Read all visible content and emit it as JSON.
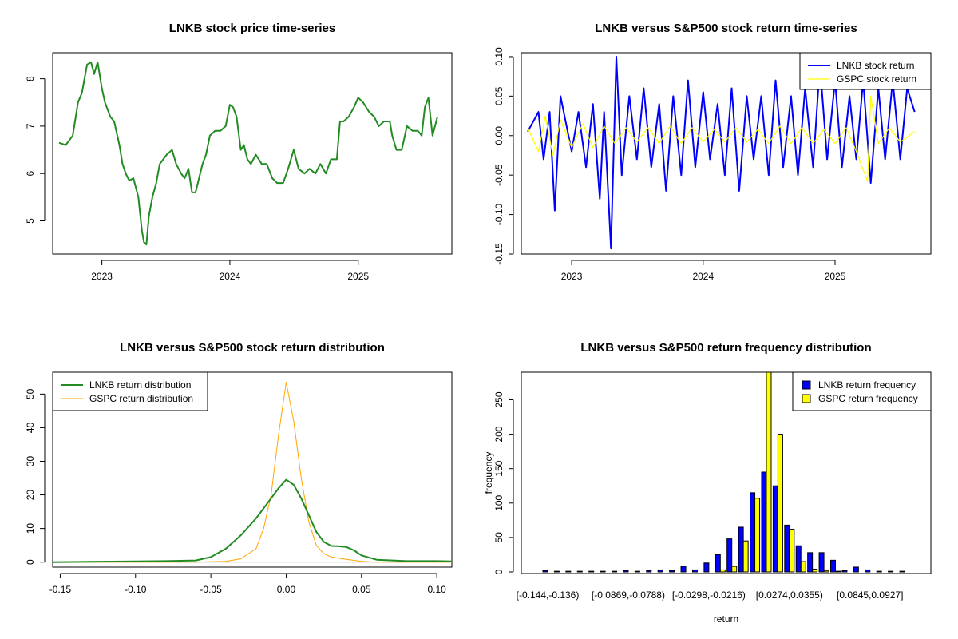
{
  "chart_data": [
    {
      "type": "line",
      "title": "LNKB stock price time-series",
      "xlabel": "",
      "ylabel": "",
      "x_ticks": [
        "2023",
        "2024",
        "2025"
      ],
      "y_ticks": [
        "5",
        "6",
        "7",
        "8"
      ],
      "x_range": [
        "2022-09-01",
        "2025-08-15"
      ],
      "ylim": [
        4.3,
        8.55
      ],
      "color": "#228B22",
      "series": [
        {
          "x": [
            "2022-09-01",
            "2022-09-20",
            "2022-10-10",
            "2022-10-25",
            "2022-11-05",
            "2022-11-20",
            "2022-12-01",
            "2022-12-10",
            "2022-12-20",
            "2023-01-01",
            "2023-01-10",
            "2023-01-25",
            "2023-02-05",
            "2023-02-20",
            "2023-03-01",
            "2023-03-10",
            "2023-03-20",
            "2023-04-01",
            "2023-04-15",
            "2023-04-25",
            "2023-05-01",
            "2023-05-08",
            "2023-05-15",
            "2023-05-25",
            "2023-06-05",
            "2023-06-15",
            "2023-06-25",
            "2023-07-05",
            "2023-07-20",
            "2023-08-01",
            "2023-08-15",
            "2023-08-25",
            "2023-09-05",
            "2023-09-15",
            "2023-09-25",
            "2023-10-05",
            "2023-10-15",
            "2023-10-25",
            "2023-11-05",
            "2023-11-20",
            "2023-12-05",
            "2023-12-20",
            "2024-01-01",
            "2024-01-10",
            "2024-01-20",
            "2024-02-01",
            "2024-02-10",
            "2024-02-20",
            "2024-03-01",
            "2024-03-15",
            "2024-04-01",
            "2024-04-15",
            "2024-05-01",
            "2024-05-15",
            "2024-06-01",
            "2024-06-15",
            "2024-07-01",
            "2024-07-15",
            "2024-08-01",
            "2024-08-15",
            "2024-09-01",
            "2024-09-15",
            "2024-10-01",
            "2024-10-15",
            "2024-11-01",
            "2024-11-10",
            "2024-11-20",
            "2024-12-05",
            "2024-12-20",
            "2025-01-01",
            "2025-01-15",
            "2025-02-01",
            "2025-02-15",
            "2025-03-01",
            "2025-03-15",
            "2025-04-01",
            "2025-04-08",
            "2025-04-20",
            "2025-05-05",
            "2025-05-20",
            "2025-06-05",
            "2025-06-20",
            "2025-07-01",
            "2025-07-10",
            "2025-07-20",
            "2025-08-01",
            "2025-08-15"
          ],
          "y": [
            6.65,
            6.6,
            6.8,
            7.5,
            7.7,
            8.3,
            8.35,
            8.1,
            8.35,
            7.8,
            7.5,
            7.2,
            7.1,
            6.6,
            6.2,
            6.0,
            5.85,
            5.9,
            5.5,
            4.8,
            4.55,
            4.5,
            5.1,
            5.5,
            5.8,
            6.2,
            6.3,
            6.4,
            6.5,
            6.2,
            6.0,
            5.9,
            6.1,
            5.6,
            5.6,
            5.9,
            6.2,
            6.4,
            6.8,
            6.9,
            6.9,
            7.0,
            7.45,
            7.4,
            7.2,
            6.5,
            6.6,
            6.3,
            6.2,
            6.4,
            6.2,
            6.2,
            5.9,
            5.8,
            5.8,
            6.1,
            6.5,
            6.1,
            6.0,
            6.1,
            6.0,
            6.2,
            6.0,
            6.3,
            6.3,
            7.1,
            7.1,
            7.2,
            7.4,
            7.6,
            7.5,
            7.3,
            7.2,
            7.0,
            7.1,
            7.1,
            6.8,
            6.5,
            6.5,
            7.0,
            6.9,
            6.9,
            6.8,
            7.4,
            7.6,
            6.8,
            7.2
          ]
        }
      ]
    },
    {
      "type": "line",
      "title": "LNKB versus S&P500 stock return time-series",
      "xlabel": "",
      "ylabel": "",
      "x_ticks": [
        "2023",
        "2024",
        "2025"
      ],
      "y_ticks": [
        "-0.15",
        "-0.10",
        "-0.05",
        "0.00",
        "0.05",
        "0.10"
      ],
      "x_range": [
        "2022-09-01",
        "2025-08-15"
      ],
      "ylim": [
        -0.15,
        0.105
      ],
      "legend": "top-right",
      "series": [
        {
          "name": "LNKB stock return",
          "color": "#0000FF",
          "x": [
            "2022-09-01",
            "2022-10-01",
            "2022-10-15",
            "2022-11-01",
            "2022-11-15",
            "2022-12-01",
            "2023-01-01",
            "2023-01-20",
            "2023-02-10",
            "2023-03-01",
            "2023-03-20",
            "2023-04-01",
            "2023-04-20",
            "2023-05-05",
            "2023-05-20",
            "2023-06-10",
            "2023-07-01",
            "2023-07-20",
            "2023-08-10",
            "2023-09-01",
            "2023-09-20",
            "2023-10-10",
            "2023-11-01",
            "2023-11-20",
            "2023-12-10",
            "2024-01-01",
            "2024-01-20",
            "2024-02-10",
            "2024-03-01",
            "2024-03-20",
            "2024-04-10",
            "2024-05-01",
            "2024-05-20",
            "2024-06-10",
            "2024-07-01",
            "2024-07-20",
            "2024-08-10",
            "2024-09-01",
            "2024-09-20",
            "2024-10-10",
            "2024-11-01",
            "2024-11-20",
            "2024-12-10",
            "2025-01-01",
            "2025-01-20",
            "2025-02-10",
            "2025-03-01",
            "2025-03-20",
            "2025-04-10",
            "2025-05-01",
            "2025-05-20",
            "2025-06-10",
            "2025-07-01",
            "2025-07-20",
            "2025-08-10"
          ],
          "y": [
            0.005,
            0.03,
            -0.03,
            0.03,
            -0.095,
            0.05,
            -0.02,
            0.03,
            -0.04,
            0.04,
            -0.08,
            0.03,
            -0.143,
            0.1,
            -0.05,
            0.05,
            -0.03,
            0.06,
            -0.04,
            0.04,
            -0.07,
            0.05,
            -0.05,
            0.07,
            -0.04,
            0.055,
            -0.03,
            0.04,
            -0.05,
            0.06,
            -0.07,
            0.05,
            -0.03,
            0.05,
            -0.05,
            0.07,
            -0.04,
            0.05,
            -0.05,
            0.06,
            -0.04,
            0.09,
            -0.03,
            0.07,
            -0.04,
            0.05,
            -0.03,
            0.07,
            -0.06,
            0.06,
            -0.03,
            0.07,
            -0.03,
            0.06,
            0.03
          ]
        },
        {
          "name": "GSPC stock return",
          "color": "#FFFF00",
          "x": [
            "2022-09-01",
            "2022-10-01",
            "2022-10-20",
            "2022-11-10",
            "2022-12-01",
            "2023-01-01",
            "2023-02-01",
            "2023-03-01",
            "2023-04-01",
            "2023-05-01",
            "2023-06-01",
            "2023-07-01",
            "2023-08-01",
            "2023-09-01",
            "2023-10-01",
            "2023-11-01",
            "2023-12-01",
            "2024-01-01",
            "2024-02-01",
            "2024-03-01",
            "2024-04-01",
            "2024-05-01",
            "2024-06-01",
            "2024-07-01",
            "2024-08-01",
            "2024-09-01",
            "2024-10-01",
            "2024-11-01",
            "2024-12-01",
            "2025-01-01",
            "2025-02-01",
            "2025-03-01",
            "2025-04-01",
            "2025-04-10",
            "2025-05-01",
            "2025-06-01",
            "2025-07-01",
            "2025-08-10"
          ],
          "y": [
            0.01,
            -0.02,
            0.025,
            -0.025,
            0.02,
            -0.015,
            0.015,
            -0.015,
            0.012,
            -0.01,
            0.01,
            -0.008,
            0.01,
            -0.01,
            0.012,
            -0.01,
            0.01,
            -0.008,
            0.008,
            -0.008,
            0.01,
            -0.008,
            0.008,
            -0.01,
            0.012,
            -0.01,
            0.01,
            -0.01,
            0.008,
            -0.01,
            0.01,
            -0.02,
            -0.058,
            0.05,
            -0.01,
            0.01,
            -0.008,
            0.005
          ]
        }
      ]
    },
    {
      "type": "line",
      "title": "LNKB versus S&P500 stock return distribution",
      "xlabel": "",
      "ylabel": "",
      "x_ticks": [
        "-0.15",
        "-0.10",
        "-0.05",
        "0.00",
        "0.05",
        "0.10"
      ],
      "y_ticks": [
        "0",
        "10",
        "20",
        "30",
        "40",
        "50"
      ],
      "xlim": [
        -0.155,
        0.11
      ],
      "ylim": [
        -1.5,
        56.5
      ],
      "legend": "top-left",
      "series": [
        {
          "name": "LNKB return distribution",
          "color": "#228B22",
          "x": [
            -0.155,
            -0.13,
            -0.1,
            -0.08,
            -0.06,
            -0.05,
            -0.04,
            -0.03,
            -0.02,
            -0.01,
            -0.005,
            0,
            0.005,
            0.01,
            0.015,
            0.02,
            0.025,
            0.03,
            0.035,
            0.04,
            0.045,
            0.05,
            0.06,
            0.08,
            0.1,
            0.11
          ],
          "y": [
            0,
            0.1,
            0.2,
            0.3,
            0.5,
            1.5,
            4,
            8,
            13,
            19,
            22,
            24.5,
            23,
            19,
            14,
            9,
            6,
            4.8,
            4.7,
            4.5,
            3.5,
            2,
            0.7,
            0.3,
            0.3,
            0.2
          ]
        },
        {
          "name": "GSPC return distribution",
          "color": "#FFA500",
          "x": [
            -0.155,
            -0.06,
            -0.04,
            -0.03,
            -0.02,
            -0.015,
            -0.01,
            -0.005,
            0,
            0.005,
            0.01,
            0.015,
            0.02,
            0.025,
            0.03,
            0.04,
            0.05,
            0.06,
            0.11
          ],
          "y": [
            0,
            0,
            0.2,
            1,
            4,
            10,
            20,
            38,
            53.5,
            42,
            25,
            12,
            5,
            2.5,
            1.5,
            0.8,
            0.2,
            0,
            0
          ]
        }
      ]
    },
    {
      "type": "bar",
      "title": "LNKB versus S&P500 return frequency distribution",
      "xlabel": "return",
      "ylabel": "frequency",
      "x_tick_labels": [
        "[-0.144,-0.136)",
        "[-0.0869,-0.0788)",
        "[-0.0298,-0.0216)",
        "[0.0274,0.0355)",
        "[0.0845,0.0927]"
      ],
      "y_ticks": [
        "0",
        "50",
        "100",
        "150",
        "200",
        "250"
      ],
      "ylim": [
        0,
        290
      ],
      "legend": "top-right",
      "series": [
        {
          "name": "LNKB return frequency",
          "color": "#0000FF",
          "values": [
            2,
            1,
            1,
            1,
            1,
            1,
            1,
            2,
            1,
            2,
            3,
            2,
            8,
            3,
            13,
            25,
            48,
            65,
            115,
            145,
            125,
            68,
            38,
            28,
            28,
            17,
            2,
            7,
            3,
            1,
            1,
            1
          ]
        },
        {
          "name": "GSPC return frequency",
          "color": "#FFFF00",
          "values": [
            0,
            0,
            0,
            0,
            0,
            0,
            0,
            0,
            0,
            0,
            0,
            0,
            0,
            0,
            0,
            3,
            8,
            45,
            107,
            290,
            200,
            62,
            15,
            4,
            2,
            1,
            0,
            0,
            0,
            0,
            0,
            0
          ]
        }
      ]
    }
  ]
}
